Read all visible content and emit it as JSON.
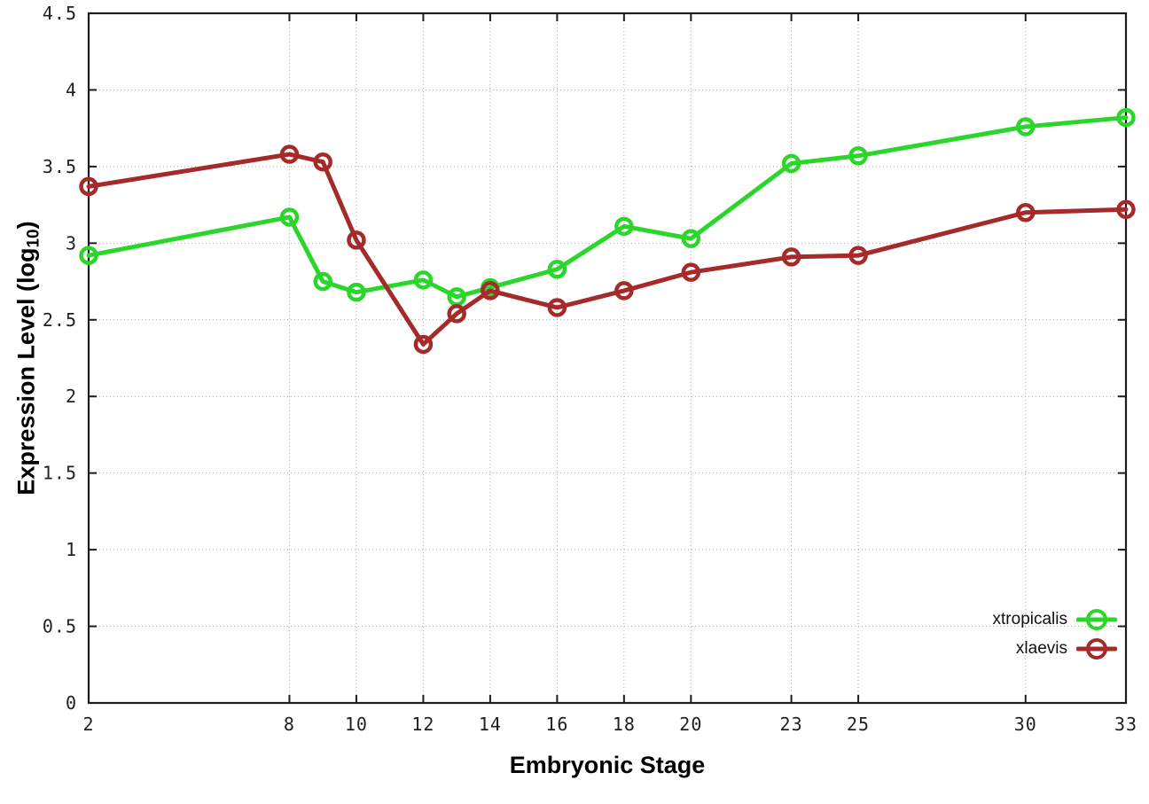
{
  "chart_data": {
    "type": "line",
    "title": "",
    "xlabel": "Embryonic Stage",
    "ylabel": {
      "main": "Expression Level (log",
      "sub": "10",
      "end": ")"
    },
    "xlim": [
      2,
      33
    ],
    "ylim": [
      0,
      4.5
    ],
    "xticks": [
      2,
      8,
      10,
      12,
      14,
      16,
      18,
      20,
      23,
      25,
      30,
      33
    ],
    "xtick_labels": [
      "2",
      "8",
      "10",
      "12",
      "14",
      "16",
      "18",
      "20",
      "23",
      "25",
      "30",
      "33"
    ],
    "yticks": [
      0,
      0.5,
      1,
      1.5,
      2,
      2.5,
      3,
      3.5,
      4,
      4.5
    ],
    "ytick_labels": [
      "0",
      "0.5",
      "1",
      "1.5",
      "2",
      "2.5",
      "3",
      "3.5",
      "4",
      "4.5"
    ],
    "grid": true,
    "legend_position": "bottom-right",
    "x": [
      2,
      8,
      9,
      10,
      12,
      13,
      14,
      16,
      18,
      20,
      23,
      25,
      30,
      33
    ],
    "series": [
      {
        "name": "xtropicalis",
        "color": "#2bd62b",
        "values": [
          2.92,
          3.17,
          2.75,
          2.68,
          2.76,
          2.65,
          2.71,
          2.83,
          3.11,
          3.03,
          3.52,
          3.57,
          3.76,
          3.82
        ]
      },
      {
        "name": "xlaevis",
        "color": "#a52a2a",
        "values": [
          3.37,
          3.58,
          3.53,
          3.02,
          2.34,
          2.54,
          2.69,
          2.58,
          2.69,
          2.81,
          2.91,
          2.92,
          3.2,
          3.22
        ]
      }
    ],
    "style": {
      "grid_color": "#ababab",
      "border_color": "#1c1c1c",
      "tick_label_color": "#1f1f1f",
      "background": "#ffffff"
    }
  }
}
